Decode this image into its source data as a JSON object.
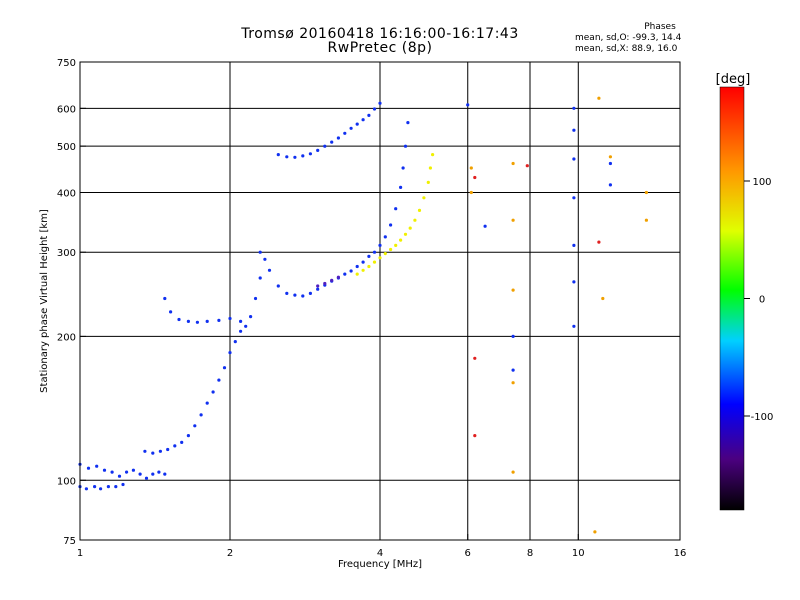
{
  "header": {
    "title": "Tromsø 20160418 16:16:00-16:17:43",
    "subtitle": "RwPretec (8p)"
  },
  "phase_stats": {
    "heading": "Phases",
    "line_o": "mean, sd,O: -99.3, 14.4",
    "line_x": "mean, sd,X:  88.9, 16.0"
  },
  "colors": {
    "blue_trace": "#1030f0",
    "yellow_trace": "#f0f000",
    "purple_trace": "#5020c0"
  },
  "chart_data": {
    "type": "scatter",
    "x_scale": "log",
    "y_scale": "log",
    "xlabel": "Frequency [MHz]",
    "ylabel": "Stationary phase Virtual Height [km]",
    "xlim": [
      1,
      16
    ],
    "ylim": [
      75,
      750
    ],
    "xticks": [
      1,
      2,
      4,
      6,
      8,
      10,
      16
    ],
    "yticks": [
      75,
      100,
      200,
      300,
      400,
      500,
      600,
      750
    ],
    "vgrid": [
      2,
      4,
      6,
      8,
      10
    ],
    "hgrid": [
      100,
      200,
      300,
      400,
      500,
      600
    ],
    "colorbar": {
      "label": "[deg]",
      "range": [
        -180,
        180
      ],
      "ticks": [
        {
          "value": 100,
          "label": "100"
        },
        {
          "value": 0,
          "label": "0"
        },
        {
          "value": -100,
          "label": "-100"
        }
      ]
    },
    "series": [
      {
        "color": "#1030f0",
        "points": [
          [
            1.0,
            97
          ],
          [
            1.03,
            96
          ],
          [
            1.07,
            97
          ],
          [
            1.1,
            96
          ],
          [
            1.14,
            97
          ],
          [
            1.18,
            97
          ],
          [
            1.22,
            98
          ],
          [
            1.0,
            108
          ],
          [
            1.04,
            106
          ],
          [
            1.08,
            107
          ],
          [
            1.12,
            105
          ],
          [
            1.16,
            104
          ],
          [
            1.2,
            102
          ],
          [
            1.24,
            104
          ],
          [
            1.28,
            105
          ],
          [
            1.32,
            103
          ],
          [
            1.36,
            101
          ],
          [
            1.4,
            103
          ],
          [
            1.44,
            104
          ],
          [
            1.48,
            103
          ]
        ]
      },
      {
        "color": "#1030f0",
        "points": [
          [
            1.35,
            115
          ],
          [
            1.4,
            114
          ],
          [
            1.45,
            115
          ],
          [
            1.5,
            116
          ],
          [
            1.55,
            118
          ],
          [
            1.6,
            120
          ],
          [
            1.65,
            124
          ],
          [
            1.7,
            130
          ],
          [
            1.75,
            137
          ],
          [
            1.8,
            145
          ],
          [
            1.85,
            153
          ],
          [
            1.9,
            162
          ],
          [
            1.95,
            172
          ],
          [
            2.0,
            185
          ],
          [
            2.05,
            195
          ],
          [
            2.1,
            205
          ],
          [
            2.15,
            210
          ],
          [
            2.2,
            220
          ],
          [
            2.25,
            240
          ],
          [
            2.3,
            265
          ],
          [
            2.35,
            290
          ]
        ]
      },
      {
        "color": "#1030f0",
        "points": [
          [
            1.48,
            240
          ],
          [
            1.52,
            225
          ],
          [
            1.58,
            217
          ],
          [
            1.65,
            215
          ],
          [
            1.72,
            214
          ],
          [
            1.8,
            215
          ],
          [
            1.9,
            216
          ],
          [
            2.0,
            218
          ],
          [
            2.1,
            215
          ]
        ]
      },
      {
        "color": "#1030f0",
        "points": [
          [
            2.3,
            300
          ],
          [
            2.4,
            275
          ],
          [
            2.5,
            255
          ],
          [
            2.6,
            246
          ],
          [
            2.7,
            244
          ],
          [
            2.8,
            243
          ],
          [
            2.9,
            246
          ],
          [
            3.0,
            251
          ],
          [
            3.1,
            256
          ],
          [
            3.2,
            261
          ],
          [
            3.3,
            265
          ],
          [
            3.4,
            270
          ],
          [
            3.5,
            274
          ],
          [
            3.6,
            280
          ],
          [
            3.7,
            286
          ],
          [
            3.8,
            294
          ],
          [
            3.9,
            300
          ],
          [
            4.0,
            310
          ],
          [
            4.1,
            323
          ],
          [
            4.2,
            342
          ],
          [
            4.3,
            370
          ],
          [
            4.4,
            410
          ],
          [
            4.45,
            450
          ],
          [
            4.5,
            500
          ],
          [
            4.55,
            560
          ]
        ]
      },
      {
        "color": "#1030f0",
        "points": [
          [
            2.5,
            480
          ],
          [
            2.6,
            475
          ],
          [
            2.7,
            474
          ],
          [
            2.8,
            477
          ],
          [
            2.9,
            482
          ],
          [
            3.0,
            490
          ],
          [
            3.1,
            500
          ],
          [
            3.2,
            510
          ],
          [
            3.3,
            520
          ],
          [
            3.4,
            532
          ],
          [
            3.5,
            545
          ],
          [
            3.6,
            556
          ],
          [
            3.7,
            568
          ],
          [
            3.8,
            580
          ],
          [
            3.9,
            598
          ],
          [
            4.0,
            615
          ]
        ]
      },
      {
        "color": "#f0f000",
        "points": [
          [
            3.6,
            270
          ],
          [
            3.7,
            275
          ],
          [
            3.8,
            280
          ],
          [
            3.9,
            286
          ],
          [
            4.0,
            292
          ],
          [
            4.1,
            298
          ],
          [
            4.2,
            304
          ],
          [
            4.3,
            310
          ],
          [
            4.4,
            318
          ],
          [
            4.5,
            327
          ],
          [
            4.6,
            337
          ],
          [
            4.7,
            350
          ],
          [
            4.8,
            367
          ],
          [
            4.9,
            390
          ],
          [
            5.0,
            420
          ],
          [
            5.05,
            450
          ],
          [
            5.1,
            480
          ]
        ]
      },
      {
        "color": "#5020c0",
        "points": [
          [
            3.0,
            255
          ],
          [
            3.1,
            258
          ],
          [
            3.2,
            262
          ],
          [
            3.3,
            266
          ]
        ]
      },
      {
        "color": "#1030f0",
        "points": [
          [
            9.8,
            600
          ],
          [
            9.8,
            540
          ],
          [
            9.8,
            470
          ],
          [
            9.8,
            390
          ],
          [
            9.8,
            310
          ],
          [
            9.8,
            260
          ],
          [
            9.8,
            210
          ],
          [
            7.4,
            200
          ],
          [
            7.4,
            170
          ],
          [
            11.6,
            415
          ],
          [
            11.6,
            460
          ],
          [
            6.0,
            610
          ],
          [
            6.5,
            340
          ]
        ]
      },
      {
        "color": "#f0a000",
        "points": [
          [
            6.1,
            450
          ],
          [
            6.1,
            400
          ],
          [
            7.4,
            460
          ],
          [
            7.4,
            350
          ],
          [
            7.4,
            250
          ],
          [
            7.4,
            160
          ],
          [
            7.4,
            104
          ],
          [
            11.0,
            630
          ],
          [
            11.6,
            475
          ],
          [
            13.7,
            400
          ],
          [
            13.7,
            350
          ],
          [
            10.8,
            78
          ],
          [
            11.2,
            240
          ]
        ]
      },
      {
        "color": "#e02020",
        "points": [
          [
            6.2,
            430
          ],
          [
            6.2,
            180
          ],
          [
            6.2,
            124
          ],
          [
            7.9,
            455
          ],
          [
            11.0,
            315
          ]
        ]
      }
    ]
  }
}
